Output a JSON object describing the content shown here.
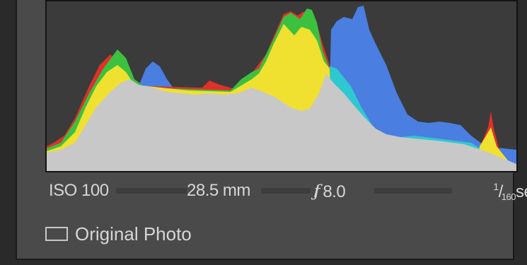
{
  "histogram": {
    "colors": {
      "background": "#3b3b3b",
      "luminance": "#c8c8c8",
      "red": "#e0302a",
      "yellow": "#f0e030",
      "green": "#3cc040",
      "blue": "#4a7ee0",
      "cyan": "#30c8d0"
    }
  },
  "camera_info": {
    "iso": "ISO 100",
    "focal_length": "28.5 mm",
    "aperture_symbol": "ƒ",
    "aperture_value": " / 8.0",
    "shutter_numerator": "1",
    "shutter_denominator": "160",
    "shutter_unit": " sec"
  },
  "original_photo": {
    "label": "Original Photo",
    "checked": false
  }
}
